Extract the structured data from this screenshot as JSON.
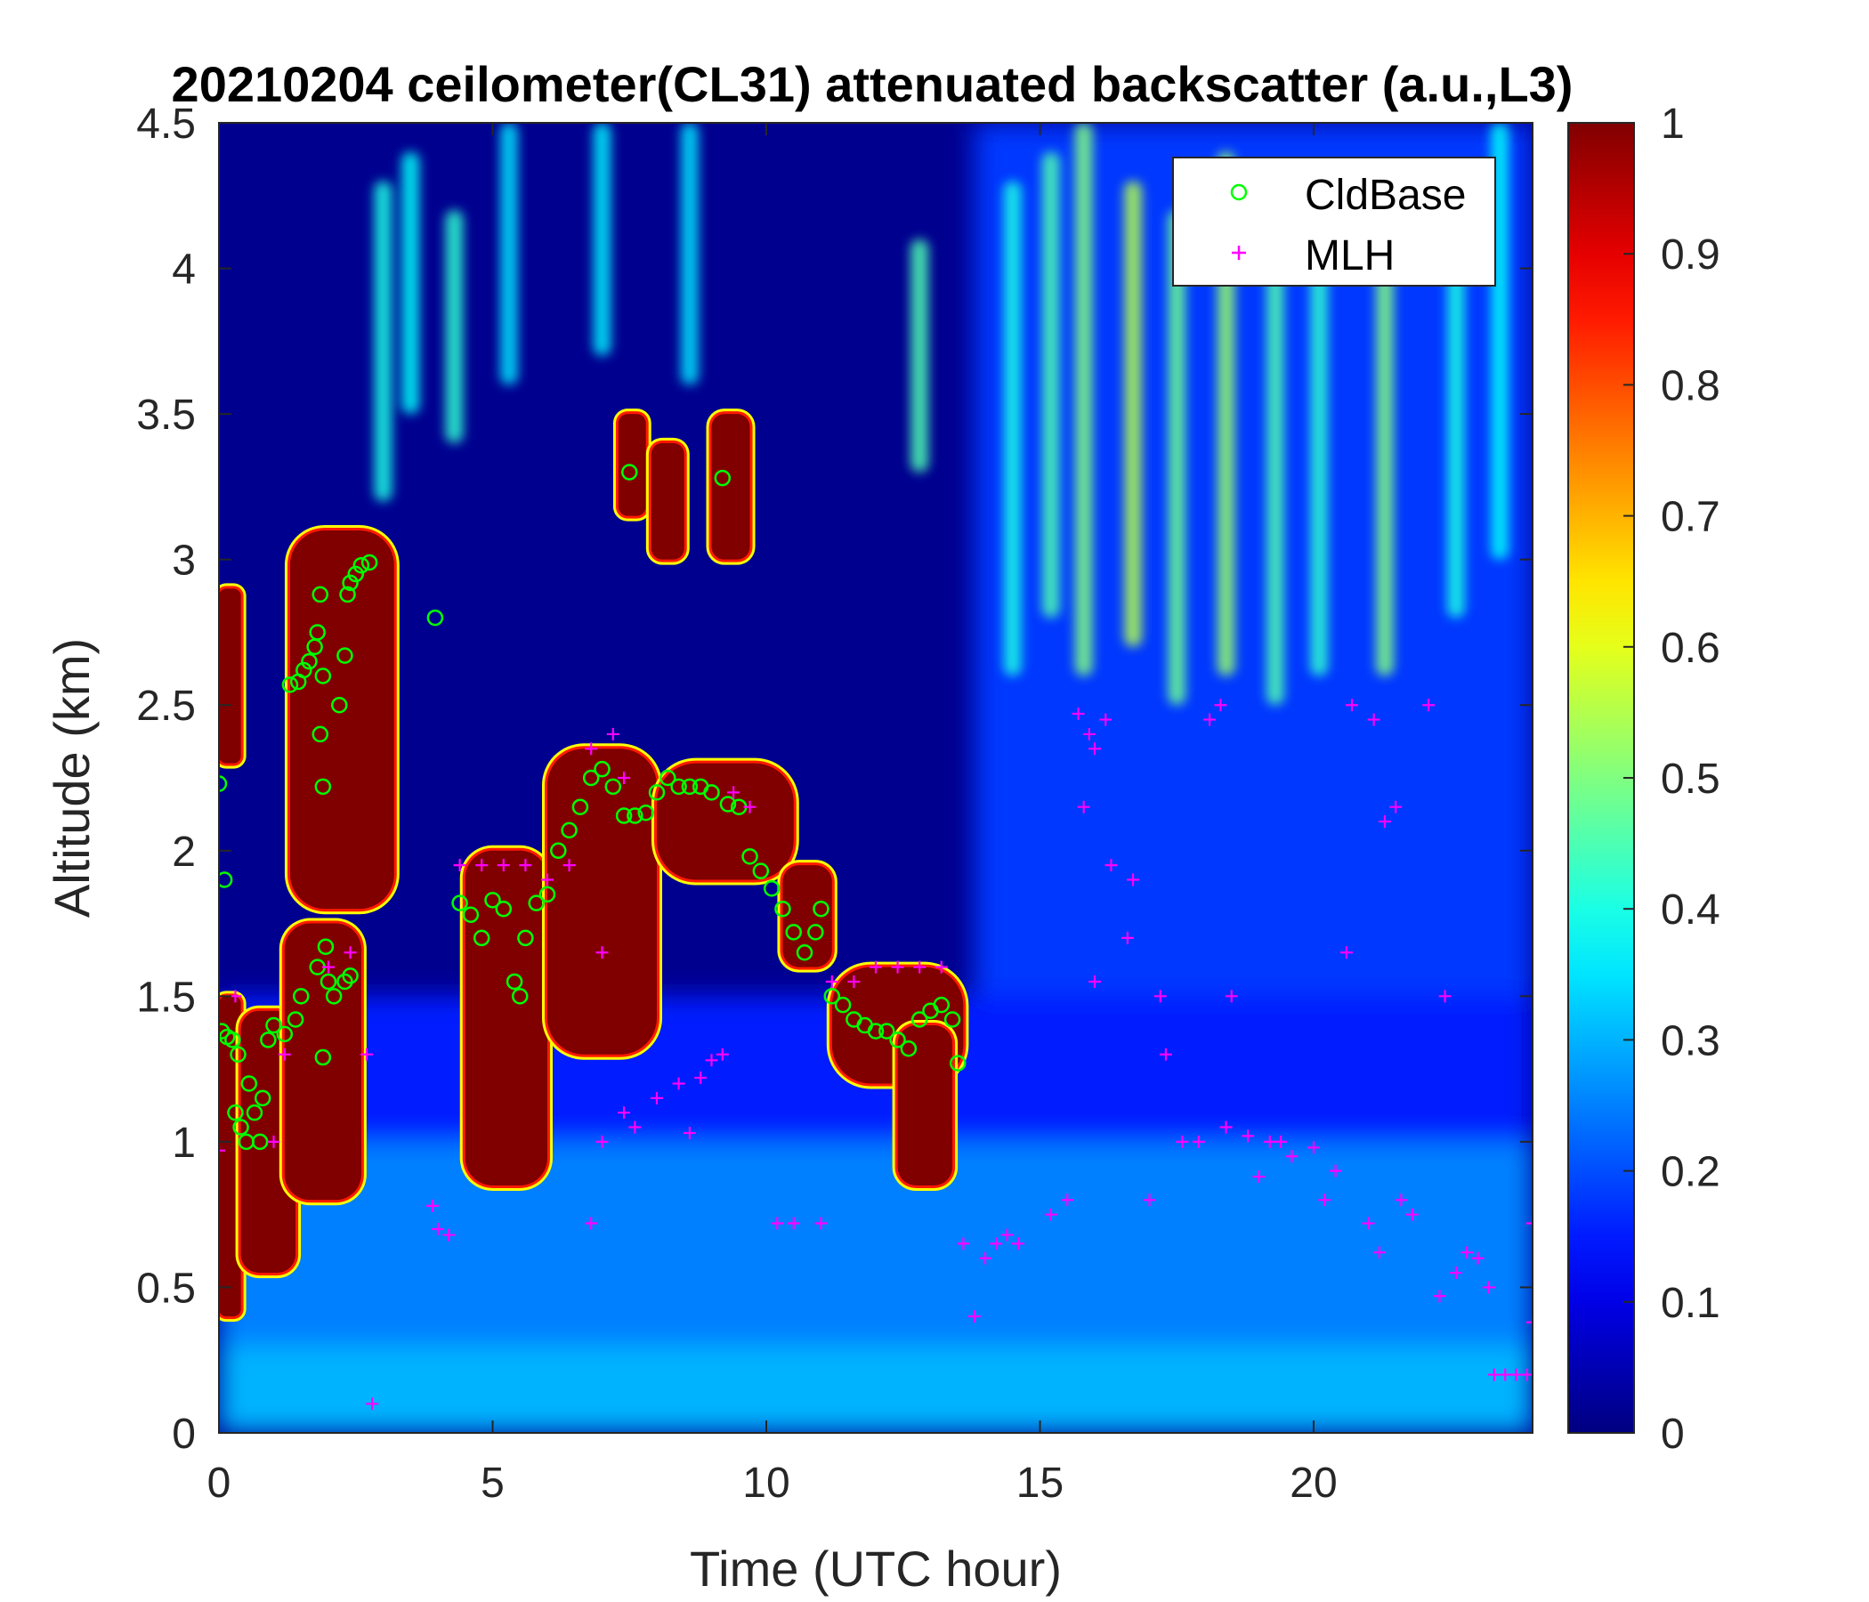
{
  "chart_data": {
    "type": "heatmap",
    "title": "20210204 ceilometer(CL31) attenuated backscatter (a.u.,L3)",
    "xlabel": "Time (UTC hour)",
    "ylabel": "Altitude (km)",
    "xlim": [
      0,
      24
    ],
    "ylim": [
      0,
      4.5
    ],
    "xticks": [
      "0",
      "5",
      "10",
      "15",
      "20"
    ],
    "yticks": [
      "0",
      "0.5",
      "1",
      "1.5",
      "2",
      "2.5",
      "3",
      "3.5",
      "4",
      "4.5"
    ],
    "colorbar": {
      "colormap": "jet",
      "range": [
        0,
        1
      ],
      "ticks": [
        "0",
        "0.1",
        "0.2",
        "0.3",
        "0.4",
        "0.5",
        "0.6",
        "0.7",
        "0.8",
        "0.9",
        "1"
      ]
    },
    "legend": {
      "placement": "top-right",
      "entries": [
        {
          "label": "CldBase",
          "marker": "circle",
          "color": "#00ff00"
        },
        {
          "label": "MLH",
          "marker": "plus",
          "color": "#ff00ff"
        }
      ]
    },
    "background_regions": [
      {
        "x0": 0,
        "x1": 24,
        "y0": 0,
        "y1": 0.3,
        "value": 0.3
      },
      {
        "x0": 0,
        "x1": 24,
        "y0": 0.3,
        "y1": 1.0,
        "value": 0.25
      },
      {
        "x0": 0,
        "x1": 24,
        "y0": 1.0,
        "y1": 1.5,
        "value": 0.15
      },
      {
        "x0": 13.8,
        "x1": 24,
        "y0": 1.5,
        "y1": 4.5,
        "value": 0.18
      }
    ],
    "cloud_regions": [
      {
        "x0": 0.0,
        "x1": 0.4,
        "y0": 0.4,
        "y1": 1.5,
        "value": 1
      },
      {
        "x0": 0.0,
        "x1": 0.4,
        "y0": 2.3,
        "y1": 2.9,
        "value": 1
      },
      {
        "x0": 0.4,
        "x1": 1.4,
        "y0": 0.55,
        "y1": 1.45,
        "value": 1
      },
      {
        "x0": 1.2,
        "x1": 2.6,
        "y0": 0.8,
        "y1": 1.75,
        "value": 1
      },
      {
        "x0": 1.3,
        "x1": 3.2,
        "y0": 1.8,
        "y1": 3.1,
        "value": 1
      },
      {
        "x0": 4.5,
        "x1": 6.0,
        "y0": 0.85,
        "y1": 2.0,
        "value": 1
      },
      {
        "x0": 6.0,
        "x1": 8.0,
        "y0": 1.3,
        "y1": 2.35,
        "value": 1
      },
      {
        "x0": 8.0,
        "x1": 10.5,
        "y0": 1.9,
        "y1": 2.3,
        "value": 1
      },
      {
        "x0": 10.3,
        "x1": 11.2,
        "y0": 1.6,
        "y1": 1.95,
        "value": 1
      },
      {
        "x0": 11.2,
        "x1": 13.6,
        "y0": 1.2,
        "y1": 1.6,
        "value": 1
      },
      {
        "x0": 12.4,
        "x1": 13.4,
        "y0": 0.85,
        "y1": 1.4,
        "value": 1
      },
      {
        "x0": 7.3,
        "x1": 7.8,
        "y0": 3.15,
        "y1": 3.5,
        "value": 1
      },
      {
        "x0": 7.9,
        "x1": 8.5,
        "y0": 3.0,
        "y1": 3.4,
        "value": 1
      },
      {
        "x0": 9.0,
        "x1": 9.7,
        "y0": 3.0,
        "y1": 3.5,
        "value": 1
      }
    ],
    "aerosol_streaks": [
      {
        "x": 3.0,
        "y0": 3.2,
        "y1": 4.3,
        "value": 0.4
      },
      {
        "x": 3.5,
        "y0": 3.5,
        "y1": 4.4,
        "value": 0.38
      },
      {
        "x": 4.3,
        "y0": 3.4,
        "y1": 4.2,
        "value": 0.42
      },
      {
        "x": 5.3,
        "y0": 3.6,
        "y1": 4.5,
        "value": 0.35
      },
      {
        "x": 7.0,
        "y0": 3.7,
        "y1": 4.5,
        "value": 0.36
      },
      {
        "x": 8.6,
        "y0": 3.6,
        "y1": 4.5,
        "value": 0.35
      },
      {
        "x": 12.8,
        "y0": 3.3,
        "y1": 4.1,
        "value": 0.45
      },
      {
        "x": 14.5,
        "y0": 2.6,
        "y1": 4.3,
        "value": 0.4
      },
      {
        "x": 15.2,
        "y0": 2.8,
        "y1": 4.4,
        "value": 0.45
      },
      {
        "x": 15.8,
        "y0": 2.6,
        "y1": 4.5,
        "value": 0.5
      },
      {
        "x": 16.7,
        "y0": 2.7,
        "y1": 4.3,
        "value": 0.55
      },
      {
        "x": 17.5,
        "y0": 2.5,
        "y1": 4.2,
        "value": 0.48
      },
      {
        "x": 18.4,
        "y0": 2.6,
        "y1": 4.4,
        "value": 0.52
      },
      {
        "x": 19.3,
        "y0": 2.5,
        "y1": 4.1,
        "value": 0.45
      },
      {
        "x": 20.1,
        "y0": 2.6,
        "y1": 4.2,
        "value": 0.42
      },
      {
        "x": 21.3,
        "y0": 2.6,
        "y1": 4.0,
        "value": 0.5
      },
      {
        "x": 22.6,
        "y0": 2.8,
        "y1": 4.3,
        "value": 0.4
      },
      {
        "x": 23.4,
        "y0": 3.0,
        "y1": 4.5,
        "value": 0.38
      }
    ],
    "series": [
      {
        "name": "CldBase",
        "marker": "circle",
        "points": [
          [
            0.0,
            2.23
          ],
          [
            0.1,
            1.9
          ],
          [
            0.05,
            1.38
          ],
          [
            0.15,
            1.36
          ],
          [
            0.25,
            1.35
          ],
          [
            0.35,
            1.3
          ],
          [
            0.3,
            1.1
          ],
          [
            0.4,
            1.05
          ],
          [
            0.5,
            1.0
          ],
          [
            0.55,
            1.2
          ],
          [
            0.65,
            1.1
          ],
          [
            0.75,
            1.0
          ],
          [
            0.8,
            1.15
          ],
          [
            0.9,
            1.35
          ],
          [
            1.0,
            1.4
          ],
          [
            1.2,
            1.37
          ],
          [
            1.4,
            1.42
          ],
          [
            1.5,
            1.5
          ],
          [
            1.3,
            2.57
          ],
          [
            1.45,
            2.58
          ],
          [
            1.55,
            2.62
          ],
          [
            1.65,
            2.65
          ],
          [
            1.75,
            2.7
          ],
          [
            1.8,
            2.75
          ],
          [
            1.85,
            2.88
          ],
          [
            1.9,
            2.6
          ],
          [
            1.85,
            2.4
          ],
          [
            1.9,
            2.22
          ],
          [
            1.95,
            1.67
          ],
          [
            1.8,
            1.6
          ],
          [
            1.9,
            1.29
          ],
          [
            2.0,
            1.55
          ],
          [
            2.1,
            1.5
          ],
          [
            2.2,
            2.5
          ],
          [
            2.3,
            2.67
          ],
          [
            2.35,
            2.88
          ],
          [
            2.4,
            2.92
          ],
          [
            2.5,
            2.95
          ],
          [
            2.6,
            2.98
          ],
          [
            2.75,
            2.99
          ],
          [
            2.3,
            1.55
          ],
          [
            2.4,
            1.57
          ],
          [
            3.95,
            2.8
          ],
          [
            4.4,
            1.82
          ],
          [
            4.6,
            1.78
          ],
          [
            4.8,
            1.7
          ],
          [
            5.0,
            1.83
          ],
          [
            5.2,
            1.8
          ],
          [
            5.4,
            1.55
          ],
          [
            5.5,
            1.5
          ],
          [
            5.6,
            1.7
          ],
          [
            5.8,
            1.82
          ],
          [
            6.0,
            1.85
          ],
          [
            6.2,
            2.0
          ],
          [
            6.4,
            2.07
          ],
          [
            6.6,
            2.15
          ],
          [
            6.8,
            2.25
          ],
          [
            7.0,
            2.28
          ],
          [
            7.2,
            2.22
          ],
          [
            7.4,
            2.12
          ],
          [
            7.5,
            3.3
          ],
          [
            7.6,
            2.12
          ],
          [
            7.8,
            2.13
          ],
          [
            8.0,
            2.2
          ],
          [
            8.2,
            2.25
          ],
          [
            8.4,
            2.22
          ],
          [
            8.6,
            2.22
          ],
          [
            8.8,
            2.22
          ],
          [
            9.0,
            2.2
          ],
          [
            9.2,
            3.28
          ],
          [
            9.3,
            2.16
          ],
          [
            9.5,
            2.15
          ],
          [
            9.7,
            1.98
          ],
          [
            9.9,
            1.93
          ],
          [
            10.1,
            1.87
          ],
          [
            10.3,
            1.8
          ],
          [
            10.5,
            1.72
          ],
          [
            10.7,
            1.65
          ],
          [
            10.9,
            1.72
          ],
          [
            11.0,
            1.8
          ],
          [
            11.2,
            1.5
          ],
          [
            11.4,
            1.47
          ],
          [
            11.6,
            1.42
          ],
          [
            11.8,
            1.4
          ],
          [
            12.0,
            1.38
          ],
          [
            12.2,
            1.38
          ],
          [
            12.4,
            1.35
          ],
          [
            12.6,
            1.32
          ],
          [
            12.8,
            1.42
          ],
          [
            13.0,
            1.45
          ],
          [
            13.2,
            1.47
          ],
          [
            13.4,
            1.42
          ],
          [
            13.5,
            1.27
          ]
        ]
      },
      {
        "name": "MLH",
        "marker": "plus",
        "points": [
          [
            0.0,
            0.97
          ],
          [
            0.3,
            1.5
          ],
          [
            1.0,
            1.0
          ],
          [
            1.2,
            1.3
          ],
          [
            2.0,
            1.6
          ],
          [
            2.4,
            1.65
          ],
          [
            2.7,
            1.3
          ],
          [
            2.8,
            0.1
          ],
          [
            3.9,
            0.78
          ],
          [
            4.0,
            0.7
          ],
          [
            4.2,
            0.68
          ],
          [
            4.4,
            1.95
          ],
          [
            4.8,
            1.95
          ],
          [
            5.2,
            1.95
          ],
          [
            5.6,
            1.95
          ],
          [
            6.0,
            1.9
          ],
          [
            6.4,
            1.95
          ],
          [
            6.8,
            2.35
          ],
          [
            7.2,
            2.4
          ],
          [
            7.4,
            2.25
          ],
          [
            7.0,
            1.65
          ],
          [
            6.8,
            0.72
          ],
          [
            7.0,
            1.0
          ],
          [
            7.4,
            1.1
          ],
          [
            7.6,
            1.05
          ],
          [
            8.0,
            1.15
          ],
          [
            8.4,
            1.2
          ],
          [
            8.6,
            1.03
          ],
          [
            8.8,
            1.22
          ],
          [
            9.0,
            1.28
          ],
          [
            9.2,
            1.3
          ],
          [
            9.4,
            2.2
          ],
          [
            9.7,
            2.15
          ],
          [
            10.2,
            0.72
          ],
          [
            10.5,
            0.72
          ],
          [
            11.0,
            0.72
          ],
          [
            11.2,
            1.55
          ],
          [
            11.6,
            1.55
          ],
          [
            12.0,
            1.6
          ],
          [
            12.4,
            1.6
          ],
          [
            12.8,
            1.6
          ],
          [
            13.2,
            1.6
          ],
          [
            13.6,
            0.65
          ],
          [
            13.8,
            0.4
          ],
          [
            14.0,
            0.6
          ],
          [
            14.2,
            0.65
          ],
          [
            14.4,
            0.68
          ],
          [
            14.6,
            0.65
          ],
          [
            15.2,
            0.75
          ],
          [
            15.5,
            0.8
          ],
          [
            15.7,
            2.47
          ],
          [
            15.8,
            2.15
          ],
          [
            15.9,
            2.4
          ],
          [
            16.0,
            2.35
          ],
          [
            16.0,
            1.55
          ],
          [
            16.2,
            2.45
          ],
          [
            16.3,
            1.95
          ],
          [
            16.6,
            1.7
          ],
          [
            16.7,
            1.9
          ],
          [
            17.0,
            0.8
          ],
          [
            17.2,
            1.5
          ],
          [
            17.3,
            1.3
          ],
          [
            17.6,
            1.0
          ],
          [
            17.9,
            1.0
          ],
          [
            18.1,
            2.45
          ],
          [
            18.3,
            2.5
          ],
          [
            18.4,
            1.05
          ],
          [
            18.5,
            1.5
          ],
          [
            18.8,
            1.02
          ],
          [
            19.0,
            0.88
          ],
          [
            19.2,
            1.0
          ],
          [
            19.4,
            1.0
          ],
          [
            19.6,
            0.95
          ],
          [
            20.0,
            0.98
          ],
          [
            20.2,
            0.8
          ],
          [
            20.4,
            0.9
          ],
          [
            20.6,
            1.65
          ],
          [
            20.7,
            2.5
          ],
          [
            21.0,
            0.72
          ],
          [
            21.2,
            0.62
          ],
          [
            21.1,
            2.45
          ],
          [
            21.3,
            2.1
          ],
          [
            21.5,
            2.15
          ],
          [
            21.6,
            0.8
          ],
          [
            21.8,
            0.75
          ],
          [
            22.1,
            2.5
          ],
          [
            22.4,
            1.5
          ],
          [
            22.3,
            0.47
          ],
          [
            22.6,
            0.55
          ],
          [
            22.8,
            0.62
          ],
          [
            23.0,
            0.6
          ],
          [
            23.2,
            0.5
          ],
          [
            23.3,
            0.2
          ],
          [
            23.5,
            0.2
          ],
          [
            23.7,
            0.2
          ],
          [
            23.9,
            0.2
          ],
          [
            24.0,
            0.38
          ],
          [
            24.0,
            0.72
          ]
        ]
      }
    ]
  }
}
